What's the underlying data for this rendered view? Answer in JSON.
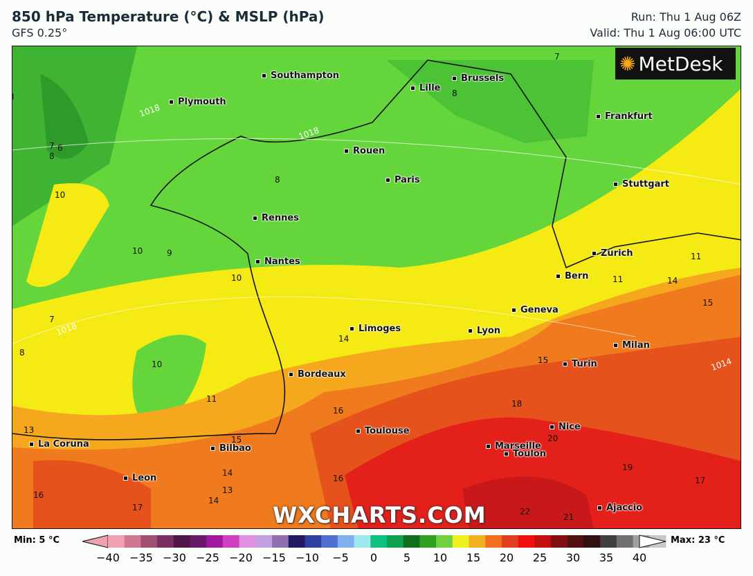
{
  "header": {
    "title": "850 hPa Temperature (°C) & MSLP (hPa)",
    "model": "GFS 0.25°",
    "run": "Run: Thu 1 Aug 06Z",
    "valid": "Valid: Thu 1 Aug 06:00 UTC"
  },
  "logo": "MetDesk",
  "watermark": "WXCHARTS.COM",
  "cities": [
    "Southampton",
    "Plymouth",
    "Lille",
    "Brussels",
    "Frankfurt",
    "Rouen",
    "Paris",
    "Stuttgart",
    "Rennes",
    "Nantes",
    "Zurich",
    "Bern",
    "Geneva",
    "Limoges",
    "Lyon",
    "Milan",
    "Turin",
    "Bordeaux",
    "Toulouse",
    "Nice",
    "Marseille",
    "Toulon",
    "La Coruna",
    "Bilbao",
    "Leon",
    "Ajaccio"
  ],
  "contour_labels": [
    "8",
    "7",
    "6",
    "8",
    "8",
    "8",
    "7",
    "10",
    "10",
    "9",
    "10",
    "7",
    "8",
    "10",
    "11",
    "14",
    "16",
    "18",
    "15",
    "20",
    "13",
    "15",
    "14",
    "13",
    "14",
    "17",
    "16",
    "16",
    "22",
    "21",
    "19",
    "17",
    "11",
    "11",
    "14",
    "15",
    "1018",
    "1018",
    "1018",
    "1014"
  ],
  "legend": {
    "min": "Min: 5 °C",
    "max": "Max: 23 °C",
    "ticks": [
      "−40",
      "−35",
      "−30",
      "−25",
      "−20",
      "−15",
      "−10",
      "−5",
      "0",
      "5",
      "10",
      "15",
      "20",
      "25",
      "30",
      "35",
      "40"
    ],
    "range": [
      -40,
      40
    ],
    "unit": "°C"
  },
  "colors": {
    "cold": "#2fa82a",
    "mild": "#64d63c",
    "warm": "#f5ea14",
    "hot": "#f07a1e",
    "very_hot": "#e4201a"
  }
}
